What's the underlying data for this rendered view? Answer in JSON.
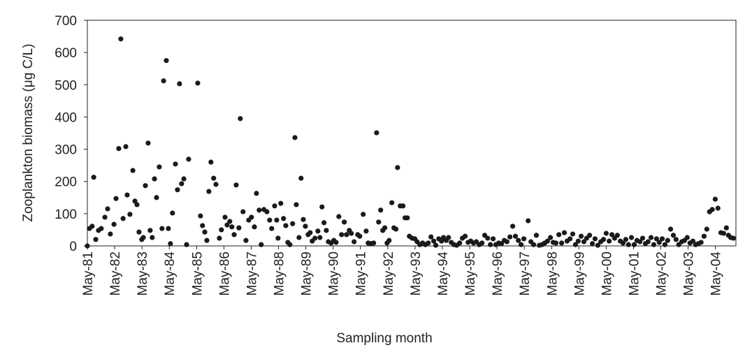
{
  "chart_data": {
    "type": "scatter",
    "xlabel": "Sampling month",
    "ylabel": "Zooplankton biomass (μg C/L)",
    "series": [
      {
        "color": "#1a1a1a",
        "x": [
          0,
          0.9,
          2.1,
          2.8,
          3.7,
          4.9,
          6.1,
          7.7,
          8.9,
          10.1,
          11.7,
          12.6,
          13.8,
          14.7,
          15.7,
          16.9,
          17.5,
          18.7,
          20,
          20.9,
          21.8,
          22.7,
          23.9,
          24.6,
          25.5,
          26.7,
          27.6,
          28.5,
          29.5,
          30.4,
          31.6,
          32.8,
          33.5,
          34.7,
          35.6,
          36.5,
          37.4,
          38.7,
          39.6,
          40.5,
          41.4,
          42.4,
          43.6,
          44.5,
          48.5,
          49.7,
          50.6,
          51.6,
          52.5,
          53.4,
          54.3,
          55.5,
          56.5,
          58,
          58.9,
          60.5,
          61.4,
          62.6,
          63.5,
          64.5,
          65.4,
          66.6,
          67.2,
          68.4,
          69.7,
          70.9,
          72.1,
          73.4,
          74.3,
          75.5,
          76.4,
          77.6,
          78.9,
          80.1,
          81,
          82.3,
          83.2,
          83.8,
          85,
          86.2,
          87.2,
          88.1,
          89,
          90.2,
          91.2,
          91.8,
          93,
          93.9,
          94.9,
          95.8,
          97,
          97.9,
          98.8,
          100,
          101.3,
          102.2,
          103.1,
          104,
          105,
          105.9,
          107.1,
          108.3,
          109.3,
          110.5,
          111.7,
          112.9,
          113.9,
          115.1,
          116,
          117.2,
          118.8,
          119.7,
          121.2,
          122.5,
          123.4,
          124.6,
          125.8,
          127.1,
          128,
          128.9,
          129.8,
          130.7,
          131.7,
          132.6,
          133.8,
          134.7,
          135.6,
          136.3,
          137.5,
          138.7,
          139.6,
          140.6,
          141.5,
          142.7,
          143.9,
          144.9,
          146.1,
          147.3,
          148.5,
          149.8,
          151,
          152.2,
          153.1,
          154.4,
          155.6,
          156.5,
          157.7,
          158.7,
          159.9,
          161.1,
          162.3,
          163.6,
          164.8,
          166,
          167.3,
          168.5,
          169.7,
          170.9,
          172.2,
          173.4,
          174.6,
          175.9,
          177.1,
          178.3,
          179.5,
          180.8,
          182,
          183.2,
          184.4,
          185.7,
          186.9,
          188.1,
          189.4,
          190.6,
          191.8,
          193.7,
          194.9,
          196.1,
          197.3,
          198.6,
          199.8,
          201,
          202.2,
          203.5,
          204.7,
          205.9,
          207.2,
          208.4,
          209.6,
          210.8,
          212.1,
          213.3,
          214.5,
          215.7,
          217,
          218.2,
          219.4,
          220.7,
          221.9,
          223.1,
          224.3,
          225.6,
          226.8,
          228,
          229.3,
          230.5,
          231.7,
          232.9,
          234.2,
          235.4,
          236.6,
          237.8,
          239.1,
          240.3,
          241.5,
          242.8,
          244,
          245.2,
          246.4,
          247.7,
          248.9,
          250.1,
          251.3,
          252.6,
          253.8,
          255,
          256.3,
          257.5,
          258.7,
          259.9,
          261.2,
          262.4,
          263.6,
          264.8,
          266.1,
          267.3,
          268.5,
          269.7,
          271,
          272.2,
          273.4,
          274.6,
          275.9,
          277.1,
          278.4,
          279.6,
          280.8,
          281.7,
          282.7,
          283.9
        ],
        "values": [
          0,
          54,
          61,
          213,
          20,
          48,
          54,
          89,
          115,
          37,
          67,
          147,
          302,
          642,
          85,
          308,
          158,
          98,
          234,
          139,
          128,
          43,
          20,
          26,
          187,
          319,
          48,
          26,
          208,
          150,
          245,
          54,
          512,
          575,
          54,
          7,
          102,
          254,
          174,
          503,
          193,
          208,
          4,
          269,
          505,
          93,
          63,
          43,
          17,
          169,
          260,
          210,
          191,
          24,
          50,
          89,
          65,
          76,
          59,
          35,
          189,
          56,
          395,
          106,
          17,
          80,
          89,
          59,
          163,
          111,
          4,
          113,
          106,
          80,
          54,
          124,
          80,
          24,
          132,
          85,
          63,
          11,
          4,
          69,
          336,
          128,
          26,
          210,
          82,
          61,
          35,
          41,
          15,
          24,
          46,
          26,
          121,
          72,
          48,
          13,
          9,
          17,
          11,
          91,
          35,
          74,
          35,
          48,
          39,
          13,
          35,
          30,
          98,
          46,
          9,
          7,
          9,
          351,
          74,
          111,
          48,
          56,
          9,
          17,
          134,
          56,
          52,
          243,
          124,
          124,
          87,
          87,
          30,
          24,
          22,
          13,
          4,
          9,
          4,
          9,
          28,
          15,
          2,
          22,
          15,
          26,
          17,
          26,
          11,
          4,
          2,
          9,
          24,
          30,
          11,
          15,
          9,
          13,
          4,
          9,
          33,
          24,
          4,
          22,
          4,
          9,
          7,
          17,
          13,
          28,
          61,
          30,
          17,
          4,
          22,
          78,
          13,
          4,
          33,
          2,
          4,
          9,
          15,
          26,
          11,
          9,
          35,
          9,
          41,
          15,
          22,
          37,
          4,
          15,
          30,
          13,
          24,
          33,
          7,
          22,
          2,
          13,
          20,
          39,
          15,
          35,
          24,
          33,
          15,
          9,
          20,
          4,
          26,
          4,
          17,
          13,
          24,
          7,
          13,
          26,
          4,
          22,
          11,
          22,
          4,
          17,
          52,
          33,
          20,
          4,
          13,
          17,
          26,
          9,
          15,
          4,
          7,
          11,
          30,
          52,
          106,
          113,
          145,
          117,
          41,
          39,
          56,
          33,
          26,
          24
        ]
      }
    ],
    "xlim": [
      0,
      285
    ],
    "xticks": [
      {
        "value": 0,
        "label": "May-81"
      },
      {
        "value": 12,
        "label": "May-82"
      },
      {
        "value": 24,
        "label": "May-83"
      },
      {
        "value": 36,
        "label": "May-84"
      },
      {
        "value": 48,
        "label": "May-85"
      },
      {
        "value": 60,
        "label": "May-86"
      },
      {
        "value": 72,
        "label": "May-87"
      },
      {
        "value": 84,
        "label": "May-88"
      },
      {
        "value": 96,
        "label": "May-89"
      },
      {
        "value": 108,
        "label": "May-90"
      },
      {
        "value": 120,
        "label": "May-91"
      },
      {
        "value": 132,
        "label": "May-92"
      },
      {
        "value": 144,
        "label": "May-93"
      },
      {
        "value": 156,
        "label": "May-94"
      },
      {
        "value": 168,
        "label": "May-95"
      },
      {
        "value": 180,
        "label": "May-96"
      },
      {
        "value": 192,
        "label": "May-97"
      },
      {
        "value": 204,
        "label": "May-98"
      },
      {
        "value": 216,
        "label": "May-99"
      },
      {
        "value": 228,
        "label": "May-00"
      },
      {
        "value": 240,
        "label": "May-01"
      },
      {
        "value": 252,
        "label": "May-02"
      },
      {
        "value": 264,
        "label": "May-03"
      },
      {
        "value": 276,
        "label": "May-04"
      }
    ],
    "ylim": [
      0,
      700
    ],
    "yticks": [
      0,
      100,
      200,
      300,
      400,
      500,
      600,
      700
    ]
  }
}
